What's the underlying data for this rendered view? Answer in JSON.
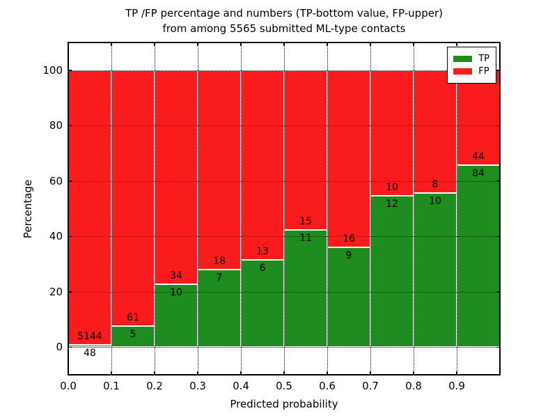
{
  "colors": {
    "tp_green": "#1e8c1e",
    "fp_red": "#fa1c1c",
    "grid": "#000000",
    "text": "#000000",
    "background": "#ffffff"
  },
  "chart_data": {
    "type": "bar",
    "stacked": true,
    "normalized": "each bar totals 100%",
    "title_line1": "TP /FP percentage and numbers (TP-bottom value, FP-upper)",
    "title_line2": "from among 5565 submitted ML-type contacts",
    "xlabel": "Predicted probability",
    "ylabel": "Percentage",
    "total_submitted": 5565,
    "xlim": [
      0.0,
      1.0
    ],
    "ylim": [
      -10,
      110
    ],
    "x_ticks": [
      0.0,
      0.1,
      0.2,
      0.3,
      0.4,
      0.5,
      0.6,
      0.7,
      0.8,
      0.9,
      1.0
    ],
    "x_tick_labels": [
      "0.0",
      "0.1",
      "0.2",
      "0.3",
      "0.4",
      "0.5",
      "0.6",
      "0.7",
      "0.8",
      "0.9"
    ],
    "y_ticks": [
      0,
      20,
      40,
      60,
      80,
      100
    ],
    "y_tick_labels": [
      "0",
      "20",
      "40",
      "60",
      "80",
      "100"
    ],
    "grid": "dotted black, drawn above bars",
    "legend_position": "upper right",
    "legend": [
      {
        "name": "TP",
        "color": "#1e8c1e"
      },
      {
        "name": "FP",
        "color": "#fa1c1c"
      }
    ],
    "bins": [
      {
        "range": "0.0-0.1",
        "tp": 48,
        "fp": 5144,
        "tp_pct": 0.92,
        "fp_pct": 99.08
      },
      {
        "range": "0.1-0.2",
        "tp": 5,
        "fp": 61,
        "tp_pct": 7.58,
        "fp_pct": 92.42
      },
      {
        "range": "0.2-0.3",
        "tp": 10,
        "fp": 34,
        "tp_pct": 22.73,
        "fp_pct": 77.27
      },
      {
        "range": "0.3-0.4",
        "tp": 7,
        "fp": 18,
        "tp_pct": 28.0,
        "fp_pct": 72.0
      },
      {
        "range": "0.4-0.5",
        "tp": 6,
        "fp": 13,
        "tp_pct": 31.58,
        "fp_pct": 68.42
      },
      {
        "range": "0.5-0.6",
        "tp": 11,
        "fp": 15,
        "tp_pct": 42.31,
        "fp_pct": 57.69
      },
      {
        "range": "0.6-0.7",
        "tp": 9,
        "fp": 16,
        "tp_pct": 36.0,
        "fp_pct": 64.0
      },
      {
        "range": "0.7-0.8",
        "tp": 12,
        "fp": 10,
        "tp_pct": 54.55,
        "fp_pct": 45.45
      },
      {
        "range": "0.8-0.9",
        "tp": 10,
        "fp": 8,
        "tp_pct": 55.56,
        "fp_pct": 44.44
      },
      {
        "range": "0.9-1.0",
        "tp": 84,
        "fp": 44,
        "tp_pct": 65.63,
        "fp_pct": 34.38
      }
    ]
  }
}
